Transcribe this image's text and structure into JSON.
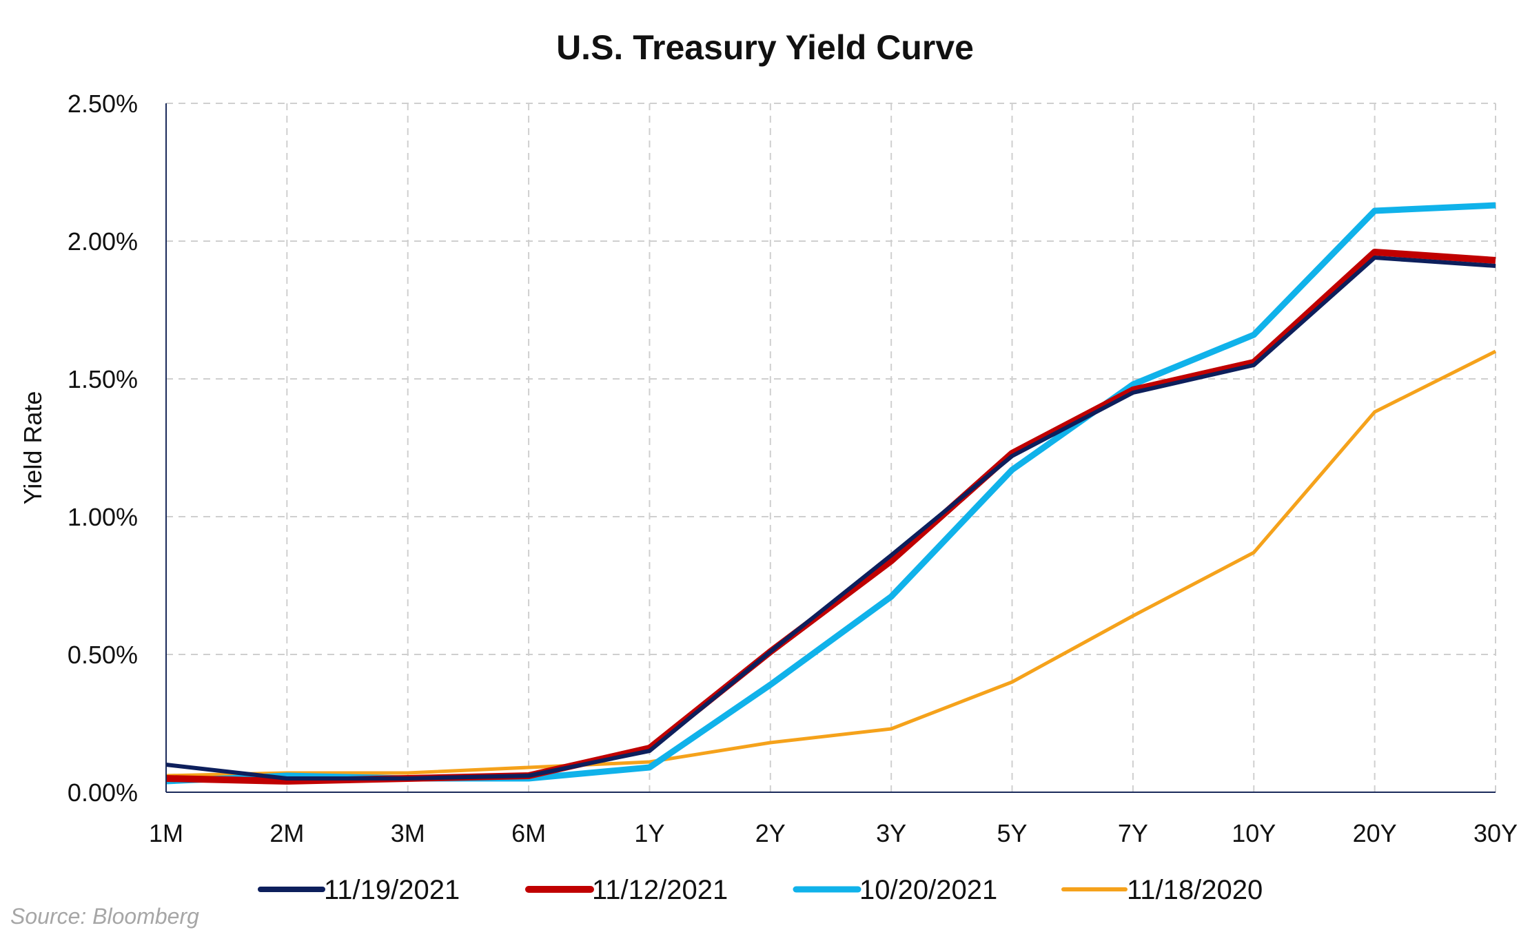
{
  "chart_data": {
    "type": "line",
    "title": "U.S. Treasury Yield Curve",
    "xlabel": "",
    "ylabel": "Yield Rate",
    "categories": [
      "1M",
      "2M",
      "3M",
      "6M",
      "1Y",
      "2Y",
      "3Y",
      "5Y",
      "7Y",
      "10Y",
      "20Y",
      "30Y"
    ],
    "ylim": [
      0,
      2.5
    ],
    "yticks": [
      0,
      0.5,
      1.0,
      1.5,
      2.0,
      2.5
    ],
    "ytick_labels": [
      "0.00%",
      "0.50%",
      "1.00%",
      "1.50%",
      "2.00%",
      "2.50%"
    ],
    "grid": true,
    "legend_position": "bottom",
    "series": [
      {
        "name": "11/18/2020",
        "color": "#f5a21b",
        "values": [
          0.06,
          0.07,
          0.07,
          0.09,
          0.11,
          0.18,
          0.23,
          0.4,
          0.64,
          0.87,
          1.38,
          1.6
        ]
      },
      {
        "name": "10/20/2021",
        "color": "#10b2ea",
        "values": [
          0.04,
          0.06,
          0.05,
          0.05,
          0.09,
          0.39,
          0.71,
          1.17,
          1.48,
          1.66,
          2.11,
          2.13
        ]
      },
      {
        "name": "11/12/2021",
        "color": "#c00000",
        "values": [
          0.05,
          0.04,
          0.05,
          0.06,
          0.16,
          0.51,
          0.84,
          1.23,
          1.46,
          1.56,
          1.96,
          1.93
        ]
      },
      {
        "name": "11/19/2021",
        "color": "#0d1f5c",
        "values": [
          0.1,
          0.05,
          0.05,
          0.06,
          0.15,
          0.51,
          0.86,
          1.22,
          1.45,
          1.55,
          1.94,
          1.91
        ]
      }
    ],
    "legend_order": [
      "11/19/2021",
      "11/12/2021",
      "10/20/2021",
      "11/18/2020"
    ],
    "source": "Source: Bloomberg"
  }
}
